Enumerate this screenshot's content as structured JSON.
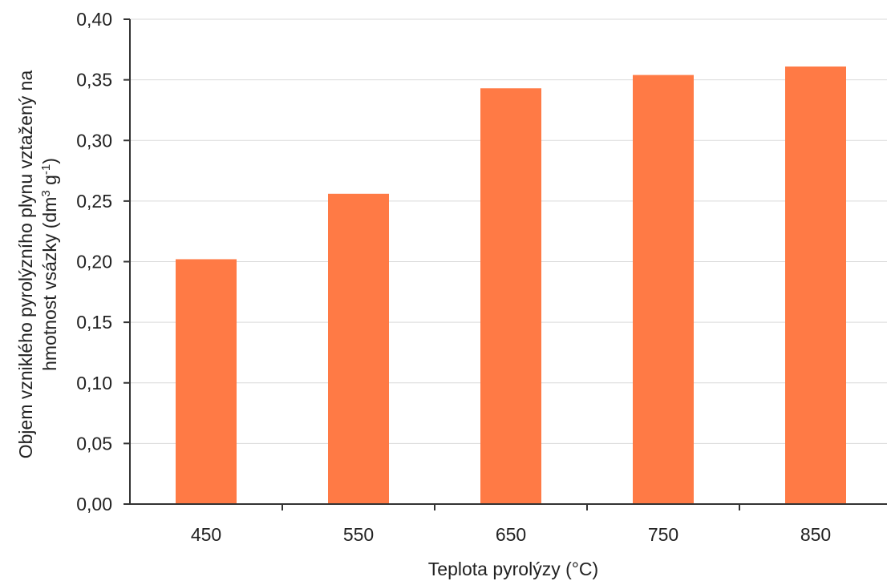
{
  "chart_data": {
    "type": "bar",
    "categories": [
      "450",
      "550",
      "650",
      "750",
      "850"
    ],
    "values": [
      0.202,
      0.256,
      0.343,
      0.354,
      0.361
    ],
    "xlabel": "Teplota pyrolýzy (°C)",
    "ylabel_line1": "Objem vzniklého pyrolýzního plynu vztažený na",
    "ylabel_line2_prefix": "hmotnost vsázky (dm",
    "ylabel_sup1": "3",
    "ylabel_mid": " g",
    "ylabel_sup2": "-1",
    "ylabel_suffix": ")",
    "yticks": [
      "0,00",
      "0,05",
      "0,10",
      "0,15",
      "0,20",
      "0,25",
      "0,30",
      "0,35",
      "0,40"
    ],
    "ylim": [
      0,
      0.4
    ],
    "grid": "horizontal",
    "bar_color": "#FF7A45"
  }
}
